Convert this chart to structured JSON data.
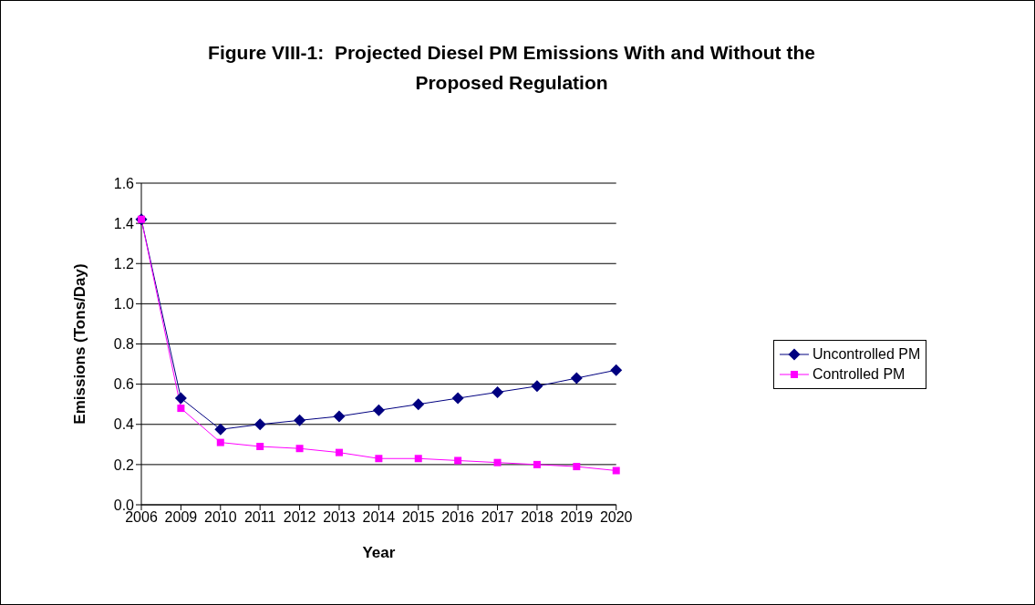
{
  "chart_data": {
    "type": "line",
    "title": "Figure VIII-1:  Projected Diesel PM Emissions With and Without the Proposed Regulation",
    "xlabel": "Year",
    "ylabel": "Emissions (Tons/Day)",
    "categories": [
      "2006",
      "2009",
      "2010",
      "2011",
      "2012",
      "2013",
      "2014",
      "2015",
      "2016",
      "2017",
      "2018",
      "2019",
      "2020"
    ],
    "series": [
      {
        "name": "Uncontrolled PM",
        "color": "#000080",
        "marker": "diamond",
        "values": [
          1.42,
          0.53,
          0.375,
          0.4,
          0.42,
          0.44,
          0.47,
          0.5,
          0.53,
          0.56,
          0.59,
          0.63,
          0.67
        ]
      },
      {
        "name": "Controlled PM",
        "color": "#ff00ff",
        "marker": "square",
        "values": [
          1.42,
          0.48,
          0.31,
          0.29,
          0.28,
          0.26,
          0.23,
          0.23,
          0.22,
          0.21,
          0.2,
          0.19,
          0.17
        ]
      }
    ],
    "ylim": [
      0,
      1.6
    ],
    "yticks": [
      {
        "value": 0,
        "label": "0.0"
      },
      0.2,
      0.4,
      0.6,
      0.8,
      {
        "value": 1,
        "label": "1.0"
      },
      1.2,
      1.4,
      1.6
    ],
    "grid": "y",
    "legend": "right"
  }
}
